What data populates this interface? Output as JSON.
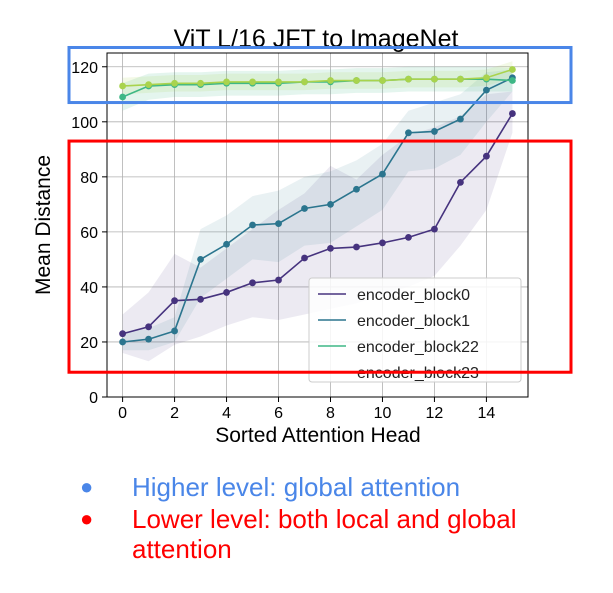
{
  "chart_data": {
    "type": "line",
    "title": "ViT L/16 JFT to ImageNet",
    "xlabel": "Sorted Attention Head",
    "ylabel": "Mean Distance",
    "xlim": [
      -0.6,
      15.6
    ],
    "ylim": [
      0,
      125
    ],
    "xticks": [
      0,
      2,
      4,
      6,
      8,
      10,
      12,
      14
    ],
    "yticks": [
      0,
      20,
      40,
      60,
      80,
      100,
      120
    ],
    "grid": true,
    "legend_position": "lower-right",
    "x": [
      0,
      1,
      2,
      3,
      4,
      5,
      6,
      7,
      8,
      9,
      10,
      11,
      12,
      13,
      14,
      15
    ],
    "series": [
      {
        "name": "encoder_block0",
        "color": "#46337e",
        "values": [
          23,
          25.5,
          35,
          35.5,
          38,
          41.5,
          42.5,
          50.5,
          54,
          54.5,
          56,
          58,
          61,
          78,
          87.5,
          103
        ],
        "band_lower": [
          16,
          13,
          19,
          22,
          26,
          29,
          28,
          30,
          32,
          34,
          37,
          40,
          44,
          55,
          68,
          96
        ],
        "band_upper": [
          30,
          38,
          52,
          47,
          54,
          61,
          68,
          74,
          84,
          79,
          88,
          95,
          98,
          102,
          110,
          111
        ]
      },
      {
        "name": "encoder_block1",
        "color": "#2b758e",
        "values": [
          20,
          21,
          24,
          50,
          55.5,
          62.5,
          63,
          68.5,
          70,
          75.5,
          81,
          96,
          96.5,
          101,
          111.5,
          116
        ],
        "band_lower": [
          17,
          17,
          20,
          36,
          43,
          50,
          49,
          55,
          56,
          62,
          68,
          82,
          83,
          88,
          100,
          111
        ],
        "band_upper": [
          23,
          25,
          29,
          61,
          66,
          73,
          75,
          80,
          82,
          86,
          92,
          104,
          107,
          110,
          118,
          119
        ]
      },
      {
        "name": "encoder_block22",
        "color": "#3eb786",
        "values": [
          109,
          113,
          113.5,
          113.5,
          114,
          114,
          114,
          114.5,
          114.5,
          115,
          115,
          115.5,
          115.5,
          115.5,
          115.5,
          115
        ],
        "band_lower": [
          104,
          108,
          109,
          109,
          109.5,
          109.5,
          109.5,
          110,
          110,
          110.5,
          110.5,
          111,
          111,
          111,
          111,
          111
        ],
        "band_upper": [
          114,
          117.5,
          118,
          118,
          118.5,
          118.5,
          118.5,
          119,
          119,
          119.5,
          119.5,
          120,
          120,
          120,
          120,
          119.5
        ]
      },
      {
        "name": "encoder_block23",
        "color": "#a9d34d",
        "values": [
          113,
          113.5,
          114,
          114,
          114.5,
          114.5,
          114.5,
          114.5,
          115,
          115,
          115,
          115.5,
          115.5,
          115.5,
          116,
          119
        ],
        "band_lower": [
          110,
          110.5,
          111,
          111,
          111.5,
          111.5,
          111.5,
          111.5,
          112,
          112,
          112,
          112.5,
          112.5,
          112.5,
          113,
          116
        ],
        "band_upper": [
          116,
          116.5,
          117,
          117,
          117.5,
          117.5,
          117.5,
          117.5,
          118,
          118,
          118,
          118.5,
          118.5,
          118.5,
          119,
          122
        ]
      }
    ],
    "highlight_boxes": [
      {
        "color": "#4a86e8",
        "y_range": [
          107,
          127
        ]
      },
      {
        "color": "#ff0000",
        "y_range": [
          9,
          93
        ]
      }
    ]
  },
  "bullets": [
    {
      "text": "Higher level: global attention",
      "color": "#4a86e8"
    },
    {
      "text": "Lower level: both local and global attention",
      "color": "#ff0000"
    }
  ]
}
